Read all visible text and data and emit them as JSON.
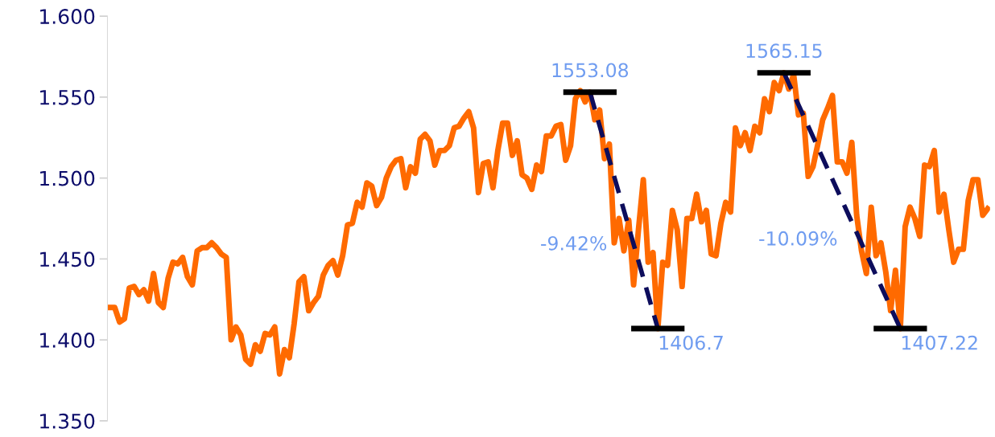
{
  "chart_data": {
    "type": "line",
    "categories": [
      null,
      null,
      null,
      null,
      null,
      null,
      null,
      null,
      null,
      null,
      null,
      null,
      null,
      null,
      null,
      null,
      null,
      null,
      null,
      null,
      null,
      null,
      null,
      null,
      null,
      null,
      null,
      null,
      null,
      null,
      null,
      null,
      null,
      null,
      null,
      null,
      null,
      null,
      null,
      null,
      null,
      null,
      null,
      null,
      null,
      null,
      null,
      null,
      null,
      null,
      null,
      null,
      null,
      null,
      null,
      null,
      null,
      null,
      null,
      null,
      null,
      null,
      null,
      null,
      null,
      null,
      null,
      null,
      null,
      null,
      null,
      null,
      null,
      null,
      null,
      null,
      null,
      null,
      null,
      null,
      null,
      null,
      null,
      null,
      null,
      null,
      null,
      null,
      null,
      null,
      null,
      null,
      null,
      null,
      null,
      null,
      null,
      null,
      null,
      null,
      null,
      null,
      null,
      null,
      null,
      null,
      null,
      null,
      null,
      null,
      null,
      null,
      null,
      null,
      null,
      null,
      null,
      null,
      null,
      null,
      null,
      null,
      null,
      null,
      null,
      null,
      null,
      null,
      null,
      null,
      null,
      null,
      null,
      null,
      null,
      null,
      null,
      null,
      null,
      null,
      null,
      null,
      null,
      null,
      null,
      null,
      null,
      null,
      null,
      null,
      null,
      null,
      null,
      null,
      null,
      null,
      null,
      null,
      null,
      null,
      null,
      null,
      null,
      null,
      null,
      null,
      null,
      null,
      null,
      null,
      null,
      null,
      null,
      null,
      null,
      null,
      null,
      null,
      null,
      null,
      null,
      null
    ],
    "series": [
      {
        "color": "#ff6a00",
        "line_style": "solid",
        "values": [
          1.42,
          1.42,
          1.411,
          1.413,
          1.432,
          1.433,
          1.428,
          1.431,
          1.424,
          1.441,
          1.423,
          1.42,
          1.438,
          1.448,
          1.447,
          1.451,
          1.439,
          1.434,
          1.455,
          1.457,
          1.457,
          1.46,
          1.457,
          1.453,
          1.451,
          1.4,
          1.408,
          1.403,
          1.388,
          1.385,
          1.397,
          1.393,
          1.404,
          1.403,
          1.408,
          1.379,
          1.394,
          1.389,
          1.41,
          1.436,
          1.439,
          1.418,
          1.423,
          1.427,
          1.44,
          1.446,
          1.449,
          1.44,
          1.452,
          1.471,
          1.472,
          1.485,
          1.482,
          1.497,
          1.495,
          1.483,
          1.488,
          1.5,
          1.507,
          1.511,
          1.512,
          1.494,
          1.507,
          1.503,
          1.524,
          1.527,
          1.523,
          1.508,
          1.517,
          1.517,
          1.52,
          1.531,
          1.532,
          1.537,
          1.541,
          1.531,
          1.491,
          1.509,
          1.51,
          1.494,
          1.517,
          1.534,
          1.534,
          1.514,
          1.523,
          1.502,
          1.5,
          1.493,
          1.508,
          1.504,
          1.526,
          1.526,
          1.532,
          1.533,
          1.511,
          1.52,
          1.549,
          1.554,
          1.547,
          1.553,
          1.536,
          1.542,
          1.512,
          1.521,
          1.46,
          1.475,
          1.455,
          1.474,
          1.434,
          1.468,
          1.499,
          1.448,
          1.454,
          1.407,
          1.448,
          1.446,
          1.48,
          1.468,
          1.433,
          1.475,
          1.475,
          1.49,
          1.473,
          1.48,
          1.453,
          1.452,
          1.472,
          1.485,
          1.479,
          1.531,
          1.52,
          1.528,
          1.517,
          1.532,
          1.528,
          1.549,
          1.541,
          1.559,
          1.554,
          1.565,
          1.555,
          1.564,
          1.539,
          1.54,
          1.501,
          1.507,
          1.521,
          1.536,
          1.543,
          1.551,
          1.51,
          1.51,
          1.503,
          1.522,
          1.477,
          1.455,
          1.441,
          1.482,
          1.452,
          1.46,
          1.442,
          1.418,
          1.443,
          1.407,
          1.47,
          1.482,
          1.475,
          1.464,
          1.508,
          1.507,
          1.517,
          1.479,
          1.49,
          1.468,
          1.448,
          1.456,
          1.456,
          1.486,
          1.499,
          1.499,
          1.477,
          1.481
        ]
      },
      {
        "color": "#0d0d5c",
        "line_style": "dashed",
        "values": [
          null,
          null,
          null,
          null,
          null,
          null,
          null,
          null,
          null,
          null,
          null,
          null,
          null,
          null,
          null,
          null,
          null,
          null,
          null,
          null,
          null,
          null,
          null,
          null,
          null,
          null,
          null,
          null,
          null,
          null,
          null,
          null,
          null,
          null,
          null,
          null,
          null,
          null,
          null,
          null,
          null,
          null,
          null,
          null,
          null,
          null,
          null,
          null,
          null,
          null,
          null,
          null,
          null,
          null,
          null,
          null,
          null,
          null,
          null,
          null,
          null,
          null,
          null,
          null,
          null,
          null,
          null,
          null,
          null,
          null,
          null,
          null,
          null,
          null,
          null,
          null,
          null,
          null,
          null,
          null,
          null,
          null,
          null,
          null,
          null,
          null,
          null,
          null,
          null,
          null,
          null,
          null,
          null,
          null,
          null,
          null,
          null,
          null,
          null,
          1.553,
          null,
          null,
          null,
          null,
          null,
          null,
          null,
          null,
          null,
          null,
          null,
          null,
          null,
          1.407,
          null,
          null,
          null,
          null,
          null,
          null,
          null,
          null,
          null,
          null,
          null,
          null,
          null,
          null,
          null,
          null,
          null,
          null,
          null,
          null,
          null,
          null,
          null,
          null,
          null,
          null,
          null,
          null,
          null,
          null,
          null,
          null,
          null,
          null,
          null,
          null,
          null,
          null,
          null,
          null,
          null,
          null,
          null,
          null,
          null,
          null,
          null,
          null,
          null,
          null,
          null,
          null,
          null,
          null,
          null,
          null,
          null,
          null,
          null,
          null,
          null,
          null,
          null,
          null,
          null,
          null,
          null,
          null
        ]
      },
      {
        "color": "#0d0d5c",
        "line_style": "dashed",
        "values": [
          null,
          null,
          null,
          null,
          null,
          null,
          null,
          null,
          null,
          null,
          null,
          null,
          null,
          null,
          null,
          null,
          null,
          null,
          null,
          null,
          null,
          null,
          null,
          null,
          null,
          null,
          null,
          null,
          null,
          null,
          null,
          null,
          null,
          null,
          null,
          null,
          null,
          null,
          null,
          null,
          null,
          null,
          null,
          null,
          null,
          null,
          null,
          null,
          null,
          null,
          null,
          null,
          null,
          null,
          null,
          null,
          null,
          null,
          null,
          null,
          null,
          null,
          null,
          null,
          null,
          null,
          null,
          null,
          null,
          null,
          null,
          null,
          null,
          null,
          null,
          null,
          null,
          null,
          null,
          null,
          null,
          null,
          null,
          null,
          null,
          null,
          null,
          null,
          null,
          null,
          null,
          null,
          null,
          null,
          null,
          null,
          null,
          null,
          null,
          null,
          null,
          null,
          null,
          null,
          null,
          null,
          null,
          null,
          null,
          null,
          null,
          null,
          null,
          null,
          null,
          null,
          null,
          null,
          null,
          null,
          null,
          null,
          null,
          null,
          null,
          null,
          null,
          null,
          null,
          null,
          null,
          null,
          null,
          null,
          null,
          null,
          null,
          null,
          null,
          1.565,
          null,
          null,
          null,
          null,
          null,
          null,
          null,
          null,
          null,
          null,
          null,
          null,
          null,
          null,
          null,
          null,
          null,
          null,
          null,
          null,
          null,
          null,
          null,
          1.407,
          null,
          null,
          null,
          null,
          null,
          null,
          null,
          null,
          null,
          null,
          null,
          null,
          null,
          null,
          null,
          null,
          null,
          null
        ]
      }
    ],
    "annotations": [
      "1553.08",
      "1406.7",
      "-9.42%",
      "1565.15",
      "1407.22",
      "-10.09%"
    ],
    "ylim": [
      1.35,
      1.6
    ],
    "yticks": [
      {
        "value": 1.35,
        "label": "1.350"
      },
      {
        "value": 1.4,
        "label": "1.400"
      },
      {
        "value": 1.45,
        "label": "1.450"
      },
      {
        "value": 1.5,
        "label": "1.500"
      },
      {
        "value": 1.55,
        "label": "1.550"
      },
      {
        "value": 1.6,
        "label": "1.600"
      }
    ],
    "tick_labels": "y",
    "grid": false,
    "legend": false,
    "marker": "none"
  }
}
